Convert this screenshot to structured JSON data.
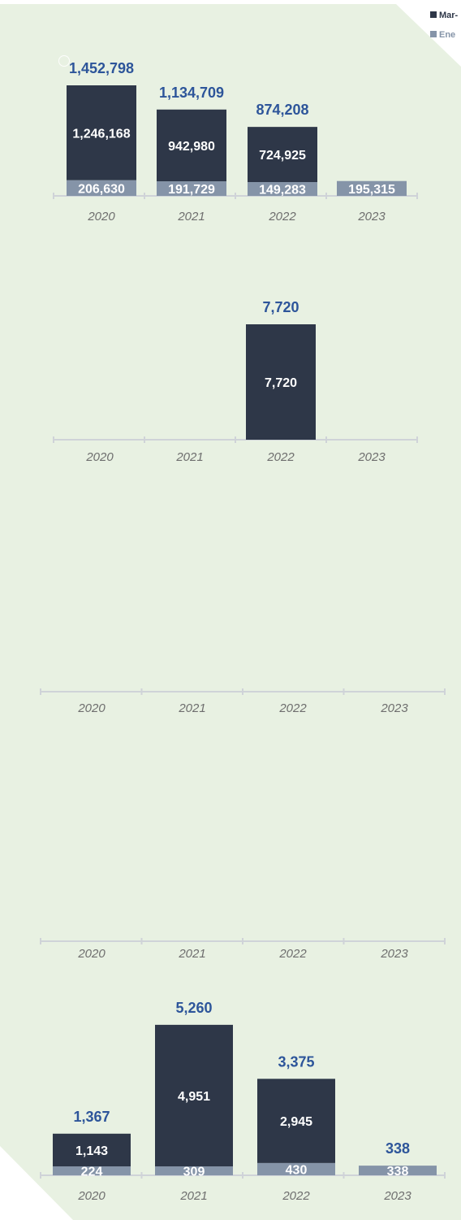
{
  "colors": {
    "background": "#e8f1e2",
    "series_1": "#2e3748",
    "series_2": "#8594a8",
    "total_label": "#2d559a",
    "year_label": "#6e6e6e",
    "axis": "#cfd3d8"
  },
  "legend": {
    "items": [
      {
        "label": "Mar-",
        "color": "#2e3748"
      },
      {
        "label": "Ene",
        "color": "#8594a8"
      }
    ]
  },
  "chart_data": [
    {
      "type": "bar",
      "stacked": true,
      "categories": [
        "2020",
        "2021",
        "2022",
        "2023"
      ],
      "series": [
        {
          "values": [
            1246168,
            942980,
            724925,
            0
          ]
        },
        {
          "values": [
            206630,
            191729,
            149283,
            195315
          ]
        }
      ],
      "totals": [
        1452798,
        1134709,
        874208,
        null
      ],
      "show_totals": [
        true,
        true,
        true,
        false
      ],
      "show_segment_labels": [
        [
          true,
          true,
          true,
          false
        ],
        [
          true,
          true,
          true,
          true
        ]
      ]
    },
    {
      "type": "bar",
      "stacked": true,
      "categories": [
        "2020",
        "2021",
        "2022",
        "2023"
      ],
      "series": [
        {
          "values": [
            0,
            0,
            7720,
            0
          ]
        },
        {
          "values": [
            0,
            0,
            0,
            0
          ]
        }
      ],
      "totals": [
        null,
        null,
        7720,
        null
      ],
      "show_totals": [
        false,
        false,
        true,
        false
      ],
      "show_segment_labels": [
        [
          false,
          false,
          true,
          false
        ],
        [
          false,
          false,
          false,
          false
        ]
      ]
    },
    {
      "type": "bar",
      "stacked": true,
      "categories": [
        "2020",
        "2021",
        "2022",
        "2023"
      ],
      "series": [
        {
          "values": [
            0,
            0,
            0,
            0
          ]
        },
        {
          "values": [
            0,
            0,
            0,
            0
          ]
        }
      ],
      "totals": [
        null,
        null,
        null,
        null
      ],
      "show_totals": [
        false,
        false,
        false,
        false
      ],
      "show_segment_labels": [
        [
          false,
          false,
          false,
          false
        ],
        [
          false,
          false,
          false,
          false
        ]
      ]
    },
    {
      "type": "bar",
      "stacked": true,
      "categories": [
        "2020",
        "2021",
        "2022",
        "2023"
      ],
      "series": [
        {
          "values": [
            0,
            0,
            0,
            0
          ]
        },
        {
          "values": [
            0,
            0,
            0,
            0
          ]
        }
      ],
      "totals": [
        null,
        null,
        null,
        null
      ],
      "show_totals": [
        false,
        false,
        false,
        false
      ],
      "show_segment_labels": [
        [
          false,
          false,
          false,
          false
        ],
        [
          false,
          false,
          false,
          false
        ]
      ]
    },
    {
      "type": "bar",
      "stacked": true,
      "categories": [
        "2020",
        "2021",
        "2022",
        "2023"
      ],
      "series": [
        {
          "values": [
            1143,
            4951,
            2945,
            0
          ]
        },
        {
          "values": [
            224,
            309,
            430,
            338
          ]
        }
      ],
      "totals": [
        1367,
        5260,
        3375,
        338
      ],
      "show_totals": [
        true,
        true,
        true,
        true
      ],
      "show_segment_labels": [
        [
          true,
          true,
          true,
          false
        ],
        [
          true,
          true,
          true,
          true
        ]
      ]
    }
  ]
}
